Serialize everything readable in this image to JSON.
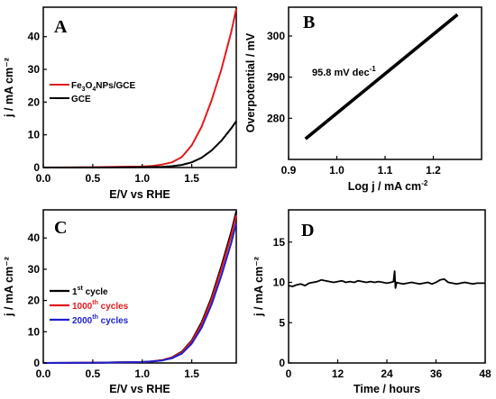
{
  "chart_data": [
    {
      "panel": "A",
      "type": "line",
      "xlabel": "E/V vs RHE",
      "ylabel": "j / mA cm⁻²",
      "xlim": [
        0.0,
        1.95
      ],
      "ylim": [
        0,
        49
      ],
      "xticks": [
        0.0,
        0.5,
        1.0,
        1.5
      ],
      "yticks": [
        0,
        10,
        20,
        30,
        40
      ],
      "legend_position": "left",
      "series": [
        {
          "name": "Fe₃O₄NPs/GCE",
          "color": "#e31a1c",
          "x": [
            0.0,
            0.5,
            1.0,
            1.1,
            1.2,
            1.3,
            1.4,
            1.5,
            1.6,
            1.7,
            1.8,
            1.9,
            1.95
          ],
          "y": [
            0.0,
            0.1,
            0.3,
            0.5,
            0.9,
            1.6,
            3.2,
            6.8,
            12.5,
            20.5,
            30.0,
            41.5,
            48.5
          ]
        },
        {
          "name": "GCE",
          "color": "#000000",
          "x": [
            0.0,
            0.5,
            1.0,
            1.2,
            1.3,
            1.4,
            1.5,
            1.6,
            1.7,
            1.8,
            1.9,
            1.95
          ],
          "y": [
            0.0,
            0.0,
            0.1,
            0.2,
            0.4,
            0.8,
            1.6,
            3.0,
            5.2,
            8.2,
            12.0,
            14.2
          ]
        }
      ]
    },
    {
      "panel": "B",
      "type": "line",
      "xlabel": "Log j / mA cm⁻²",
      "ylabel": "Overpotential / mV",
      "xlim": [
        0.9,
        1.3
      ],
      "ylim": [
        270,
        307
      ],
      "xticks": [
        0.9,
        1.0,
        1.1,
        1.2
      ],
      "yticks": [
        280,
        290,
        300
      ],
      "annotation": "95.8 mV dec⁻¹",
      "series": [
        {
          "color": "#000000",
          "x": [
            0.935,
            1.25
          ],
          "y": [
            275.0,
            305.2
          ]
        }
      ]
    },
    {
      "panel": "C",
      "type": "line",
      "xlabel": "E/V vs RHE",
      "ylabel": "j / mA cm⁻²",
      "xlim": [
        0.0,
        1.95
      ],
      "ylim": [
        0,
        49
      ],
      "xticks": [
        0.0,
        0.5,
        1.0,
        1.5
      ],
      "yticks": [
        0,
        10,
        20,
        30,
        40
      ],
      "legend_position": "left",
      "series": [
        {
          "name": "1st cycle",
          "name_base": "1",
          "name_sup": "st",
          "name_tail": " cycle",
          "color": "#000000",
          "x": [
            0.0,
            0.5,
            1.0,
            1.1,
            1.2,
            1.3,
            1.4,
            1.5,
            1.6,
            1.7,
            1.8,
            1.9,
            1.95
          ],
          "y": [
            0.0,
            0.1,
            0.3,
            0.5,
            0.9,
            1.8,
            3.6,
            7.2,
            13.0,
            21.0,
            31.0,
            42.0,
            48.5
          ]
        },
        {
          "name": "1000th cycles",
          "name_base": "1000",
          "name_sup": "th",
          "name_tail": " cycles",
          "color": "#e31a1c",
          "x": [
            0.0,
            0.5,
            1.0,
            1.1,
            1.2,
            1.3,
            1.4,
            1.5,
            1.6,
            1.7,
            1.8,
            1.9,
            1.95
          ],
          "y": [
            0.0,
            0.1,
            0.3,
            0.5,
            0.9,
            1.7,
            3.4,
            6.9,
            12.4,
            20.3,
            30.0,
            40.8,
            47.3
          ]
        },
        {
          "name": "2000th cycles",
          "name_base": "2000",
          "name_sup": "th",
          "name_tail": " cycles",
          "color": "#1f1fd1",
          "x": [
            0.0,
            0.5,
            1.0,
            1.1,
            1.2,
            1.3,
            1.4,
            1.5,
            1.6,
            1.7,
            1.8,
            1.9,
            1.95
          ],
          "y": [
            0.0,
            0.1,
            0.3,
            0.5,
            0.8,
            1.5,
            3.0,
            6.2,
            11.3,
            18.7,
            28.0,
            38.5,
            44.8
          ]
        }
      ]
    },
    {
      "panel": "D",
      "type": "line",
      "xlabel": "Time / hours",
      "ylabel": "j / mA cm⁻²",
      "xlim": [
        0,
        48
      ],
      "ylim": [
        0,
        19
      ],
      "xticks": [
        0,
        12,
        24,
        36,
        48
      ],
      "yticks": [
        0,
        5,
        10,
        15
      ],
      "series": [
        {
          "color": "#000000",
          "x": [
            0,
            1,
            2,
            3,
            4,
            5,
            6,
            7,
            8,
            9,
            10,
            11,
            12,
            13,
            14,
            15,
            16,
            17,
            18,
            19,
            20,
            21,
            22,
            23,
            24,
            25,
            25.6,
            25.9,
            26.1,
            26.4,
            27,
            28,
            29,
            30,
            31,
            32,
            33,
            34,
            35,
            36,
            37,
            38,
            39,
            40,
            41,
            42,
            43,
            44,
            45,
            46,
            47,
            48
          ],
          "y": [
            9.6,
            9.5,
            9.7,
            9.8,
            9.6,
            9.9,
            10.0,
            10.1,
            10.3,
            10.2,
            10.1,
            10.0,
            10.1,
            10.2,
            10.0,
            10.1,
            10.0,
            10.2,
            10.1,
            10.0,
            10.1,
            10.0,
            10.1,
            10.0,
            9.9,
            10.0,
            10.1,
            11.4,
            9.3,
            10.0,
            9.9,
            9.8,
            9.9,
            10.0,
            9.9,
            9.8,
            9.9,
            10.0,
            9.8,
            10.0,
            10.3,
            10.4,
            10.0,
            9.9,
            9.8,
            9.9,
            10.0,
            9.9,
            9.8,
            9.9,
            9.9,
            9.9
          ]
        }
      ]
    }
  ]
}
